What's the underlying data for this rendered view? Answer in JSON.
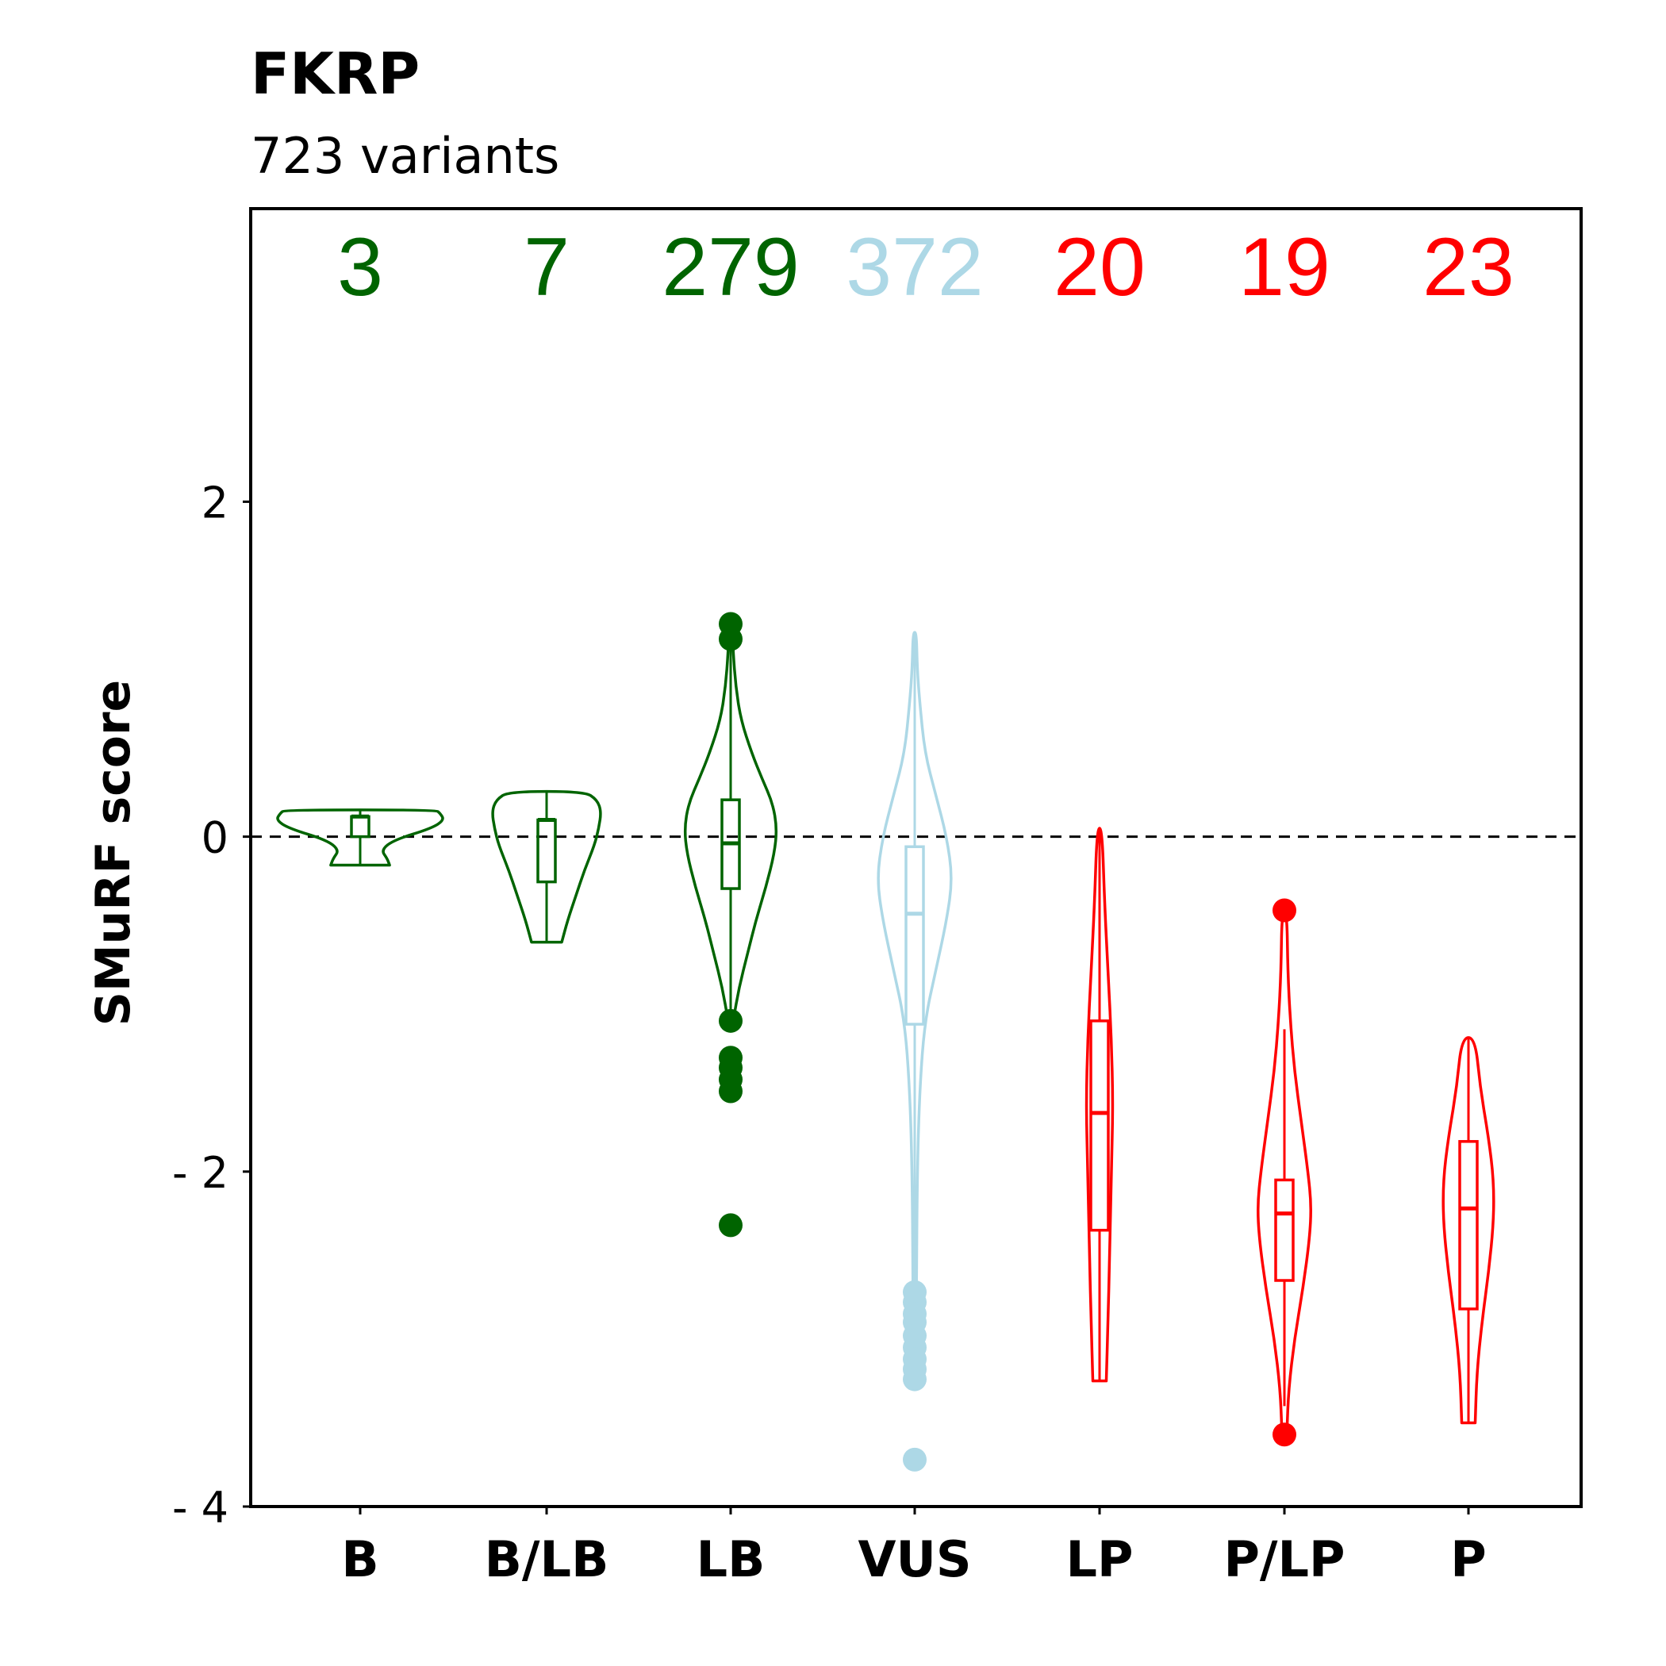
{
  "chart_data": {
    "type": "violin",
    "title": "FKRP",
    "subtitle": "723 variants",
    "ylabel": "SMuRF score",
    "xlabel": "",
    "ylim": [
      -4,
      3.75
    ],
    "yticks": [
      {
        "value": 2,
        "label": "2"
      },
      {
        "value": 0,
        "label": "0"
      },
      {
        "value": -2,
        "label": "- 2"
      },
      {
        "value": -4,
        "label": "- 4"
      }
    ],
    "reference_line": {
      "value": 0,
      "style": "dashed"
    },
    "categories": [
      "B",
      "B/LB",
      "LB",
      "VUS",
      "LP",
      "P/LP",
      "P"
    ],
    "series": [
      {
        "category": "B",
        "count": "3",
        "color": "#006400",
        "violin": {
          "min": -0.17,
          "max": 0.16,
          "widths": [
            [
              -0.17,
              0.35
            ],
            [
              -0.13,
              0.32
            ],
            [
              -0.08,
              0.25
            ],
            [
              -0.02,
              0.4
            ],
            [
              0.05,
              0.85
            ],
            [
              0.1,
              1.0
            ],
            [
              0.14,
              0.95
            ],
            [
              0.16,
              0.9
            ]
          ]
        },
        "box": {
          "q1": 0.0,
          "median": 0.12,
          "q3": 0.12,
          "whisker_low": -0.17,
          "whisker_high": 0.16
        },
        "outliers": []
      },
      {
        "category": "B/LB",
        "count": "7",
        "color": "#006400",
        "violin": {
          "min": -0.63,
          "max": 0.27,
          "widths": [
            [
              -0.63,
              0.18
            ],
            [
              -0.5,
              0.25
            ],
            [
              -0.35,
              0.35
            ],
            [
              -0.2,
              0.45
            ],
            [
              -0.05,
              0.57
            ],
            [
              0.05,
              0.62
            ],
            [
              0.15,
              0.65
            ],
            [
              0.22,
              0.6
            ],
            [
              0.27,
              0.45
            ]
          ]
        },
        "box": {
          "q1": -0.27,
          "median": 0.1,
          "q3": 0.1,
          "whisker_low": -0.63,
          "whisker_high": 0.27
        },
        "outliers": []
      },
      {
        "category": "LB",
        "count": "279",
        "color": "#006400",
        "violin": {
          "min": -1.1,
          "max": 1.25,
          "widths": [
            [
              -1.1,
              0.03
            ],
            [
              -0.9,
              0.1
            ],
            [
              -0.7,
              0.2
            ],
            [
              -0.5,
              0.3
            ],
            [
              -0.3,
              0.42
            ],
            [
              -0.1,
              0.52
            ],
            [
              0.05,
              0.55
            ],
            [
              0.2,
              0.5
            ],
            [
              0.35,
              0.37
            ],
            [
              0.5,
              0.25
            ],
            [
              0.7,
              0.12
            ],
            [
              0.9,
              0.06
            ],
            [
              1.1,
              0.03
            ],
            [
              1.25,
              0.02
            ]
          ]
        },
        "box": {
          "q1": -0.31,
          "median": -0.04,
          "q3": 0.22,
          "whisker_low": -1.1,
          "whisker_high": 1.25
        },
        "outliers": [
          1.27,
          1.18,
          -1.1,
          -1.32,
          -1.38,
          -1.45,
          -1.52,
          -2.32
        ]
      },
      {
        "category": "VUS",
        "count": "372",
        "color": "#add8e6",
        "violin": {
          "min": -2.75,
          "max": 1.22,
          "widths": [
            [
              -2.75,
              0.02
            ],
            [
              -2.0,
              0.03
            ],
            [
              -1.5,
              0.06
            ],
            [
              -1.1,
              0.12
            ],
            [
              -0.8,
              0.25
            ],
            [
              -0.5,
              0.38
            ],
            [
              -0.25,
              0.45
            ],
            [
              0.0,
              0.38
            ],
            [
              0.25,
              0.25
            ],
            [
              0.5,
              0.12
            ],
            [
              0.8,
              0.06
            ],
            [
              1.0,
              0.03
            ],
            [
              1.22,
              0.02
            ]
          ]
        },
        "box": {
          "q1": -1.12,
          "median": -0.46,
          "q3": -0.06,
          "whisker_low": -2.75,
          "whisker_high": 1.22
        },
        "outliers": [
          -2.72,
          -2.78,
          -2.85,
          -2.9,
          -2.98,
          -3.05,
          -3.12,
          -3.18,
          -3.24,
          -3.72
        ]
      },
      {
        "category": "LP",
        "count": "20",
        "color": "#ff0000",
        "violin": {
          "min": -3.25,
          "max": 0.05,
          "widths": [
            [
              -3.25,
              0.08
            ],
            [
              -2.9,
              0.1
            ],
            [
              -2.5,
              0.12
            ],
            [
              -2.0,
              0.14
            ],
            [
              -1.6,
              0.16
            ],
            [
              -1.2,
              0.14
            ],
            [
              -0.8,
              0.1
            ],
            [
              -0.4,
              0.06
            ],
            [
              0.05,
              0.03
            ]
          ]
        },
        "box": {
          "q1": -2.35,
          "median": -1.65,
          "q3": -1.1,
          "whisker_low": -3.25,
          "whisker_high": 0.05
        },
        "outliers": []
      },
      {
        "category": "P/LP",
        "count": "19",
        "color": "#ff0000",
        "violin": {
          "min": -3.55,
          "max": -0.45,
          "widths": [
            [
              -3.55,
              0.03
            ],
            [
              -3.3,
              0.05
            ],
            [
              -3.0,
              0.12
            ],
            [
              -2.7,
              0.22
            ],
            [
              -2.4,
              0.3
            ],
            [
              -2.2,
              0.32
            ],
            [
              -2.0,
              0.28
            ],
            [
              -1.7,
              0.2
            ],
            [
              -1.4,
              0.12
            ],
            [
              -1.1,
              0.07
            ],
            [
              -0.8,
              0.04
            ],
            [
              -0.45,
              0.03
            ]
          ]
        },
        "box": {
          "q1": -2.65,
          "median": -2.25,
          "q3": -2.05,
          "whisker_low": -3.4,
          "whisker_high": -1.15
        },
        "outliers": [
          -0.44,
          -3.57
        ]
      },
      {
        "category": "P",
        "count": "23",
        "color": "#ff0000",
        "violin": {
          "min": -3.5,
          "max": -1.2,
          "widths": [
            [
              -3.5,
              0.08
            ],
            [
              -3.2,
              0.1
            ],
            [
              -2.9,
              0.16
            ],
            [
              -2.6,
              0.24
            ],
            [
              -2.3,
              0.3
            ],
            [
              -2.05,
              0.3
            ],
            [
              -1.8,
              0.24
            ],
            [
              -1.5,
              0.14
            ],
            [
              -1.2,
              0.08
            ]
          ]
        },
        "box": {
          "q1": -2.82,
          "median": -2.22,
          "q3": -1.82,
          "whisker_low": -3.5,
          "whisker_high": -1.2
        },
        "outliers": []
      }
    ],
    "grid": false,
    "legend": "none"
  }
}
